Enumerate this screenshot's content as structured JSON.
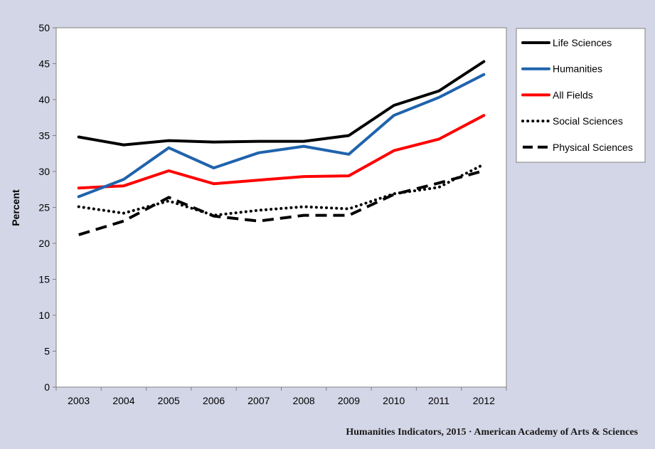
{
  "chart_data": {
    "type": "line",
    "title": "",
    "xlabel": "",
    "ylabel": "Percent",
    "ylim": [
      0,
      50
    ],
    "yticks": [
      0,
      5,
      10,
      15,
      20,
      25,
      30,
      35,
      40,
      45,
      50
    ],
    "grid": false,
    "legend_position": "right",
    "categories": [
      "2003",
      "2004",
      "2005",
      "2006",
      "2007",
      "2008",
      "2009",
      "2010",
      "2011",
      "2012"
    ],
    "series": [
      {
        "name": "Life Sciences",
        "color": "#000000",
        "style": "solid",
        "values": [
          34.8,
          33.7,
          34.3,
          34.1,
          34.2,
          34.2,
          35.0,
          39.2,
          41.2,
          45.3
        ]
      },
      {
        "name": "Humanities",
        "color": "#1f63ad",
        "style": "solid",
        "values": [
          26.5,
          28.9,
          33.3,
          30.5,
          32.6,
          33.5,
          32.4,
          37.8,
          40.3,
          43.5
        ]
      },
      {
        "name": "All Fields",
        "color": "#ff0000",
        "style": "solid",
        "values": [
          27.7,
          28.0,
          30.1,
          28.3,
          28.8,
          29.3,
          29.4,
          32.9,
          34.5,
          37.8
        ]
      },
      {
        "name": "Social Sciences",
        "color": "#000000",
        "style": "dotted",
        "values": [
          25.1,
          24.2,
          25.9,
          23.9,
          24.6,
          25.1,
          24.8,
          26.9,
          27.8,
          31.0
        ]
      },
      {
        "name": "Physical Sciences",
        "color": "#000000",
        "style": "dashed",
        "values": [
          21.2,
          23.1,
          26.4,
          23.8,
          23.1,
          23.9,
          23.9,
          26.8,
          28.4,
          30.1
        ]
      }
    ]
  },
  "credit": "Humanities Indicators, 2015 · American Academy of Arts & Sciences"
}
